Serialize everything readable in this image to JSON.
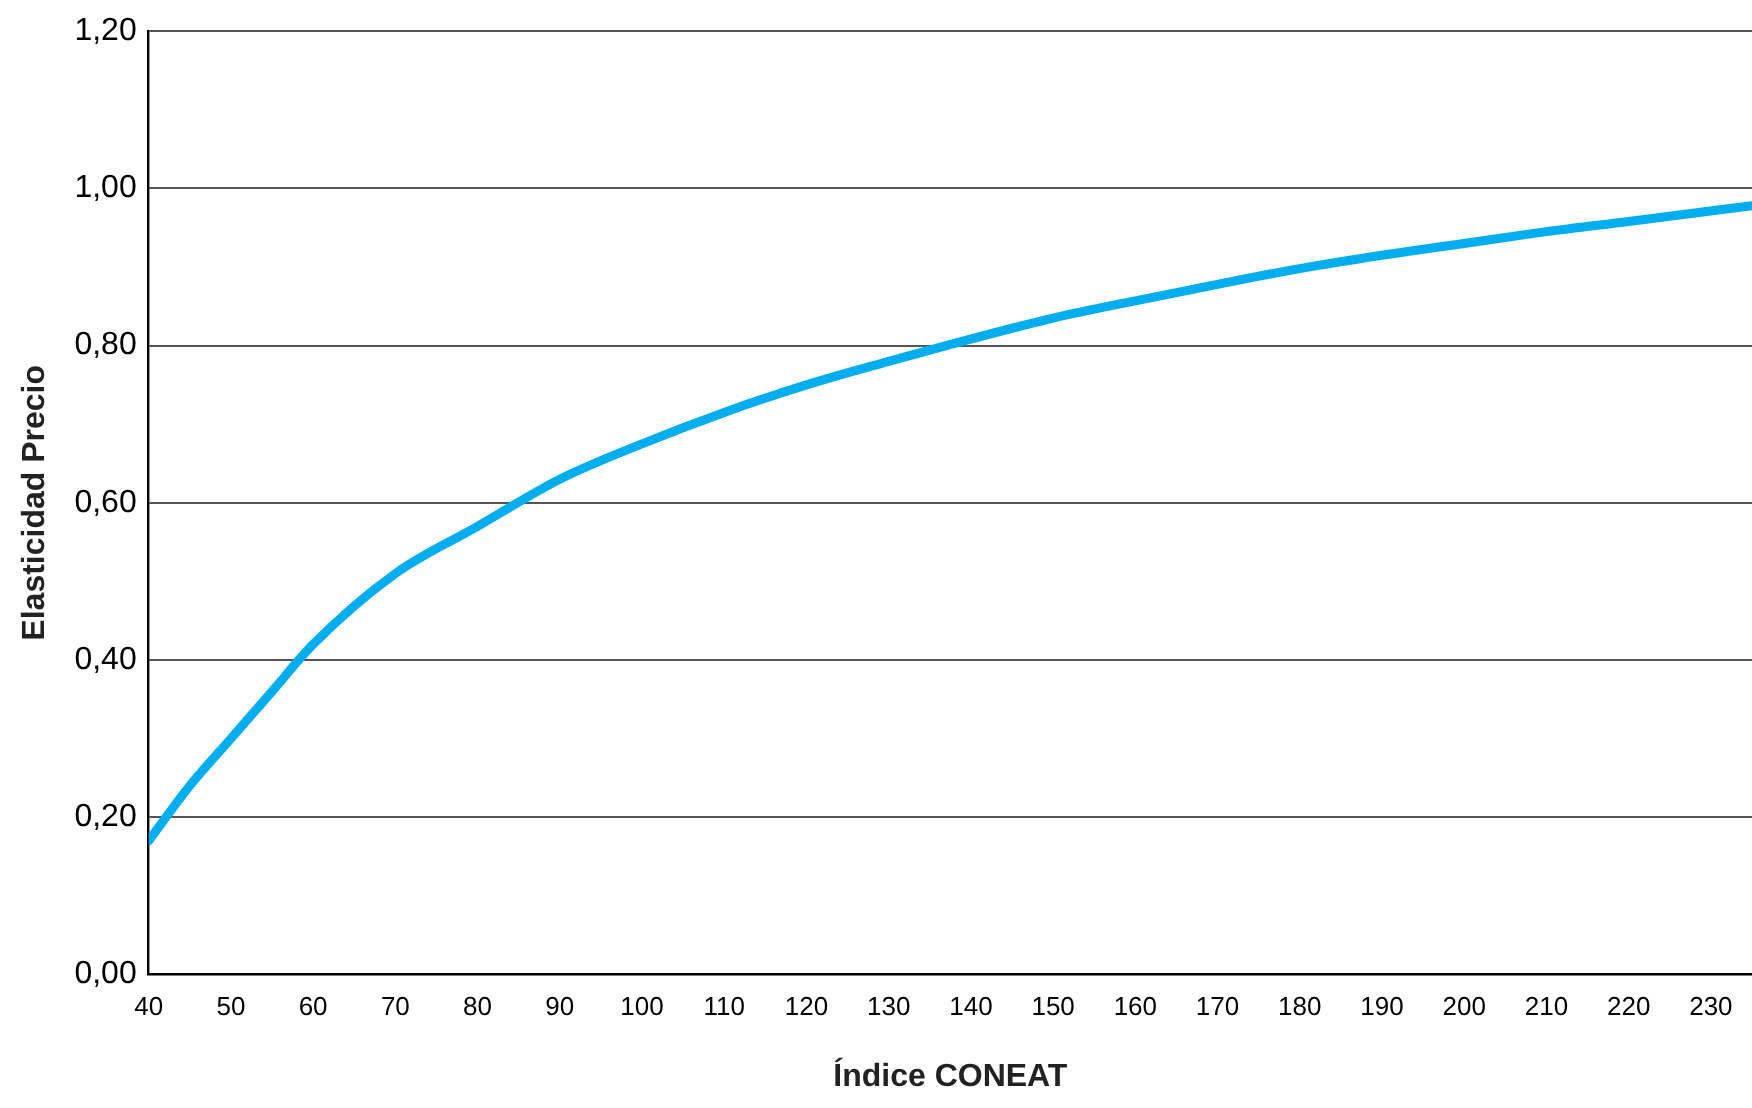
{
  "chart_data": {
    "type": "line",
    "xlabel": "Índice CONEAT",
    "ylabel": "Elasticidad Precio",
    "x": [
      40,
      45,
      50,
      55,
      60,
      70,
      80,
      90,
      100,
      110,
      120,
      130,
      137,
      150,
      160,
      170,
      180,
      190,
      200,
      210,
      220,
      235
    ],
    "series": [
      {
        "color": "#00aeef",
        "values": [
          0.17,
          0.24,
          0.3,
          0.36,
          0.42,
          0.51,
          0.57,
          0.63,
          0.675,
          0.715,
          0.75,
          0.78,
          0.8,
          0.835,
          0.857,
          0.878,
          0.898,
          0.915,
          0.93,
          0.945,
          0.958,
          0.978
        ]
      }
    ],
    "xlim": [
      40,
      235
    ],
    "xticks": [
      40,
      50,
      60,
      70,
      80,
      90,
      100,
      110,
      120,
      130,
      140,
      150,
      160,
      170,
      180,
      190,
      200,
      210,
      220,
      230
    ],
    "ylim": [
      0,
      1.2
    ],
    "yticks": [
      {
        "value": 0,
        "label": "0,00"
      },
      {
        "value": 0.2,
        "label": "0,20"
      },
      {
        "value": 0.4,
        "label": "0,40"
      },
      {
        "value": 0.6,
        "label": "0,60"
      },
      {
        "value": 0.8,
        "label": "0,80"
      },
      {
        "value": 1,
        "label": "1,00"
      },
      {
        "value": 1.2,
        "label": "1,20"
      }
    ],
    "grid": "y",
    "legend": false,
    "marker": "none",
    "line_style": "solid"
  }
}
